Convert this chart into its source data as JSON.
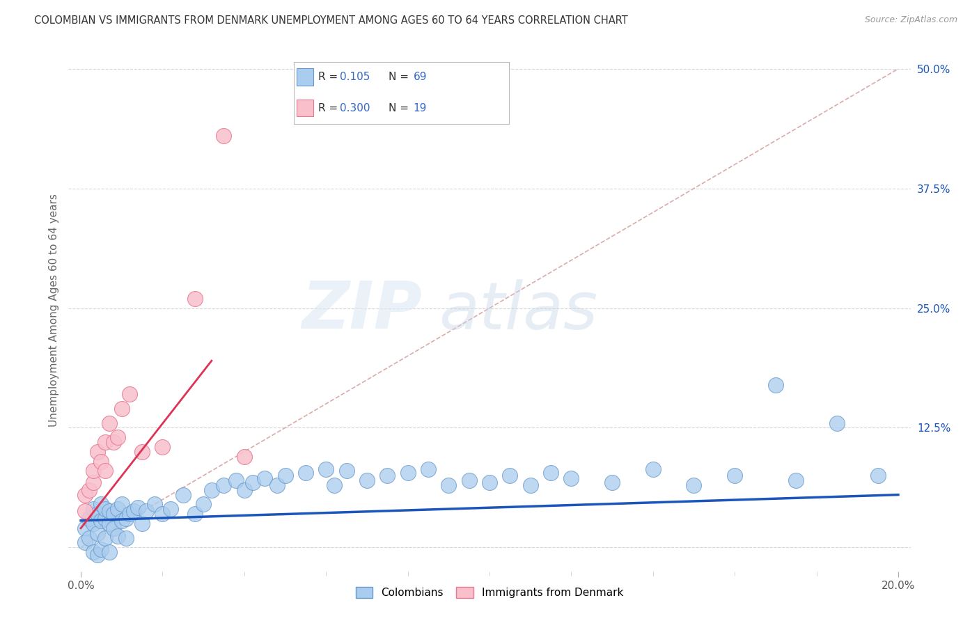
{
  "title": "COLOMBIAN VS IMMIGRANTS FROM DENMARK UNEMPLOYMENT AMONG AGES 60 TO 64 YEARS CORRELATION CHART",
  "source": "Source: ZipAtlas.com",
  "ylabel": "Unemployment Among Ages 60 to 64 years",
  "x_min": 0.0,
  "x_max": 0.2,
  "y_min": -0.025,
  "y_max": 0.52,
  "y_ticks": [
    0.0,
    0.125,
    0.25,
    0.375,
    0.5
  ],
  "y_tick_labels": [
    "",
    "12.5%",
    "25.0%",
    "37.5%",
    "50.0%"
  ],
  "grid_color": "#cccccc",
  "background_color": "#ffffff",
  "colombians_color": "#aaccee",
  "colombians_edge_color": "#6699cc",
  "denmark_color": "#f9c0cc",
  "denmark_edge_color": "#e87890",
  "blue_line_color": "#1a55bb",
  "pink_line_color": "#dd3355",
  "diag_line_color": "#ddaaaa",
  "R_colombians": "0.105",
  "N_colombians": "69",
  "R_denmark": "0.300",
  "N_denmark": "19",
  "legend_text_color": "#3366cc",
  "watermark_zip": "ZIP",
  "watermark_atlas": "atlas",
  "blue_line_x": [
    0.0,
    0.2
  ],
  "blue_line_y": [
    0.028,
    0.055
  ],
  "pink_line_x": [
    0.0,
    0.032
  ],
  "pink_line_y": [
    0.02,
    0.195
  ],
  "colombians_x": [
    0.001,
    0.001,
    0.002,
    0.002,
    0.003,
    0.003,
    0.003,
    0.004,
    0.004,
    0.004,
    0.005,
    0.005,
    0.005,
    0.006,
    0.006,
    0.006,
    0.007,
    0.007,
    0.007,
    0.008,
    0.008,
    0.009,
    0.009,
    0.01,
    0.01,
    0.011,
    0.011,
    0.012,
    0.013,
    0.014,
    0.015,
    0.016,
    0.018,
    0.02,
    0.022,
    0.025,
    0.028,
    0.03,
    0.032,
    0.035,
    0.038,
    0.04,
    0.042,
    0.045,
    0.048,
    0.05,
    0.055,
    0.06,
    0.062,
    0.065,
    0.07,
    0.075,
    0.08,
    0.085,
    0.09,
    0.095,
    0.1,
    0.105,
    0.11,
    0.115,
    0.12,
    0.13,
    0.14,
    0.15,
    0.16,
    0.17,
    0.175,
    0.185,
    0.195
  ],
  "colombians_y": [
    0.02,
    0.005,
    0.03,
    0.01,
    0.04,
    0.025,
    -0.005,
    0.035,
    0.015,
    -0.008,
    0.045,
    0.028,
    -0.002,
    0.03,
    0.01,
    0.04,
    0.025,
    0.038,
    -0.005,
    0.035,
    0.02,
    0.04,
    0.012,
    0.045,
    0.028,
    0.03,
    0.01,
    0.035,
    0.038,
    0.042,
    0.025,
    0.038,
    0.045,
    0.035,
    0.04,
    0.055,
    0.035,
    0.045,
    0.06,
    0.065,
    0.07,
    0.06,
    0.068,
    0.072,
    0.065,
    0.075,
    0.078,
    0.082,
    0.065,
    0.08,
    0.07,
    0.075,
    0.078,
    0.082,
    0.065,
    0.07,
    0.068,
    0.075,
    0.065,
    0.078,
    0.072,
    0.068,
    0.082,
    0.065,
    0.075,
    0.17,
    0.07,
    0.13,
    0.075
  ],
  "denmark_x": [
    0.001,
    0.001,
    0.002,
    0.003,
    0.003,
    0.004,
    0.005,
    0.006,
    0.006,
    0.007,
    0.008,
    0.009,
    0.01,
    0.012,
    0.015,
    0.02,
    0.028,
    0.035,
    0.04
  ],
  "denmark_y": [
    0.038,
    0.055,
    0.06,
    0.068,
    0.08,
    0.1,
    0.09,
    0.11,
    0.08,
    0.13,
    0.11,
    0.115,
    0.145,
    0.16,
    0.1,
    0.105,
    0.26,
    0.43,
    0.095
  ]
}
